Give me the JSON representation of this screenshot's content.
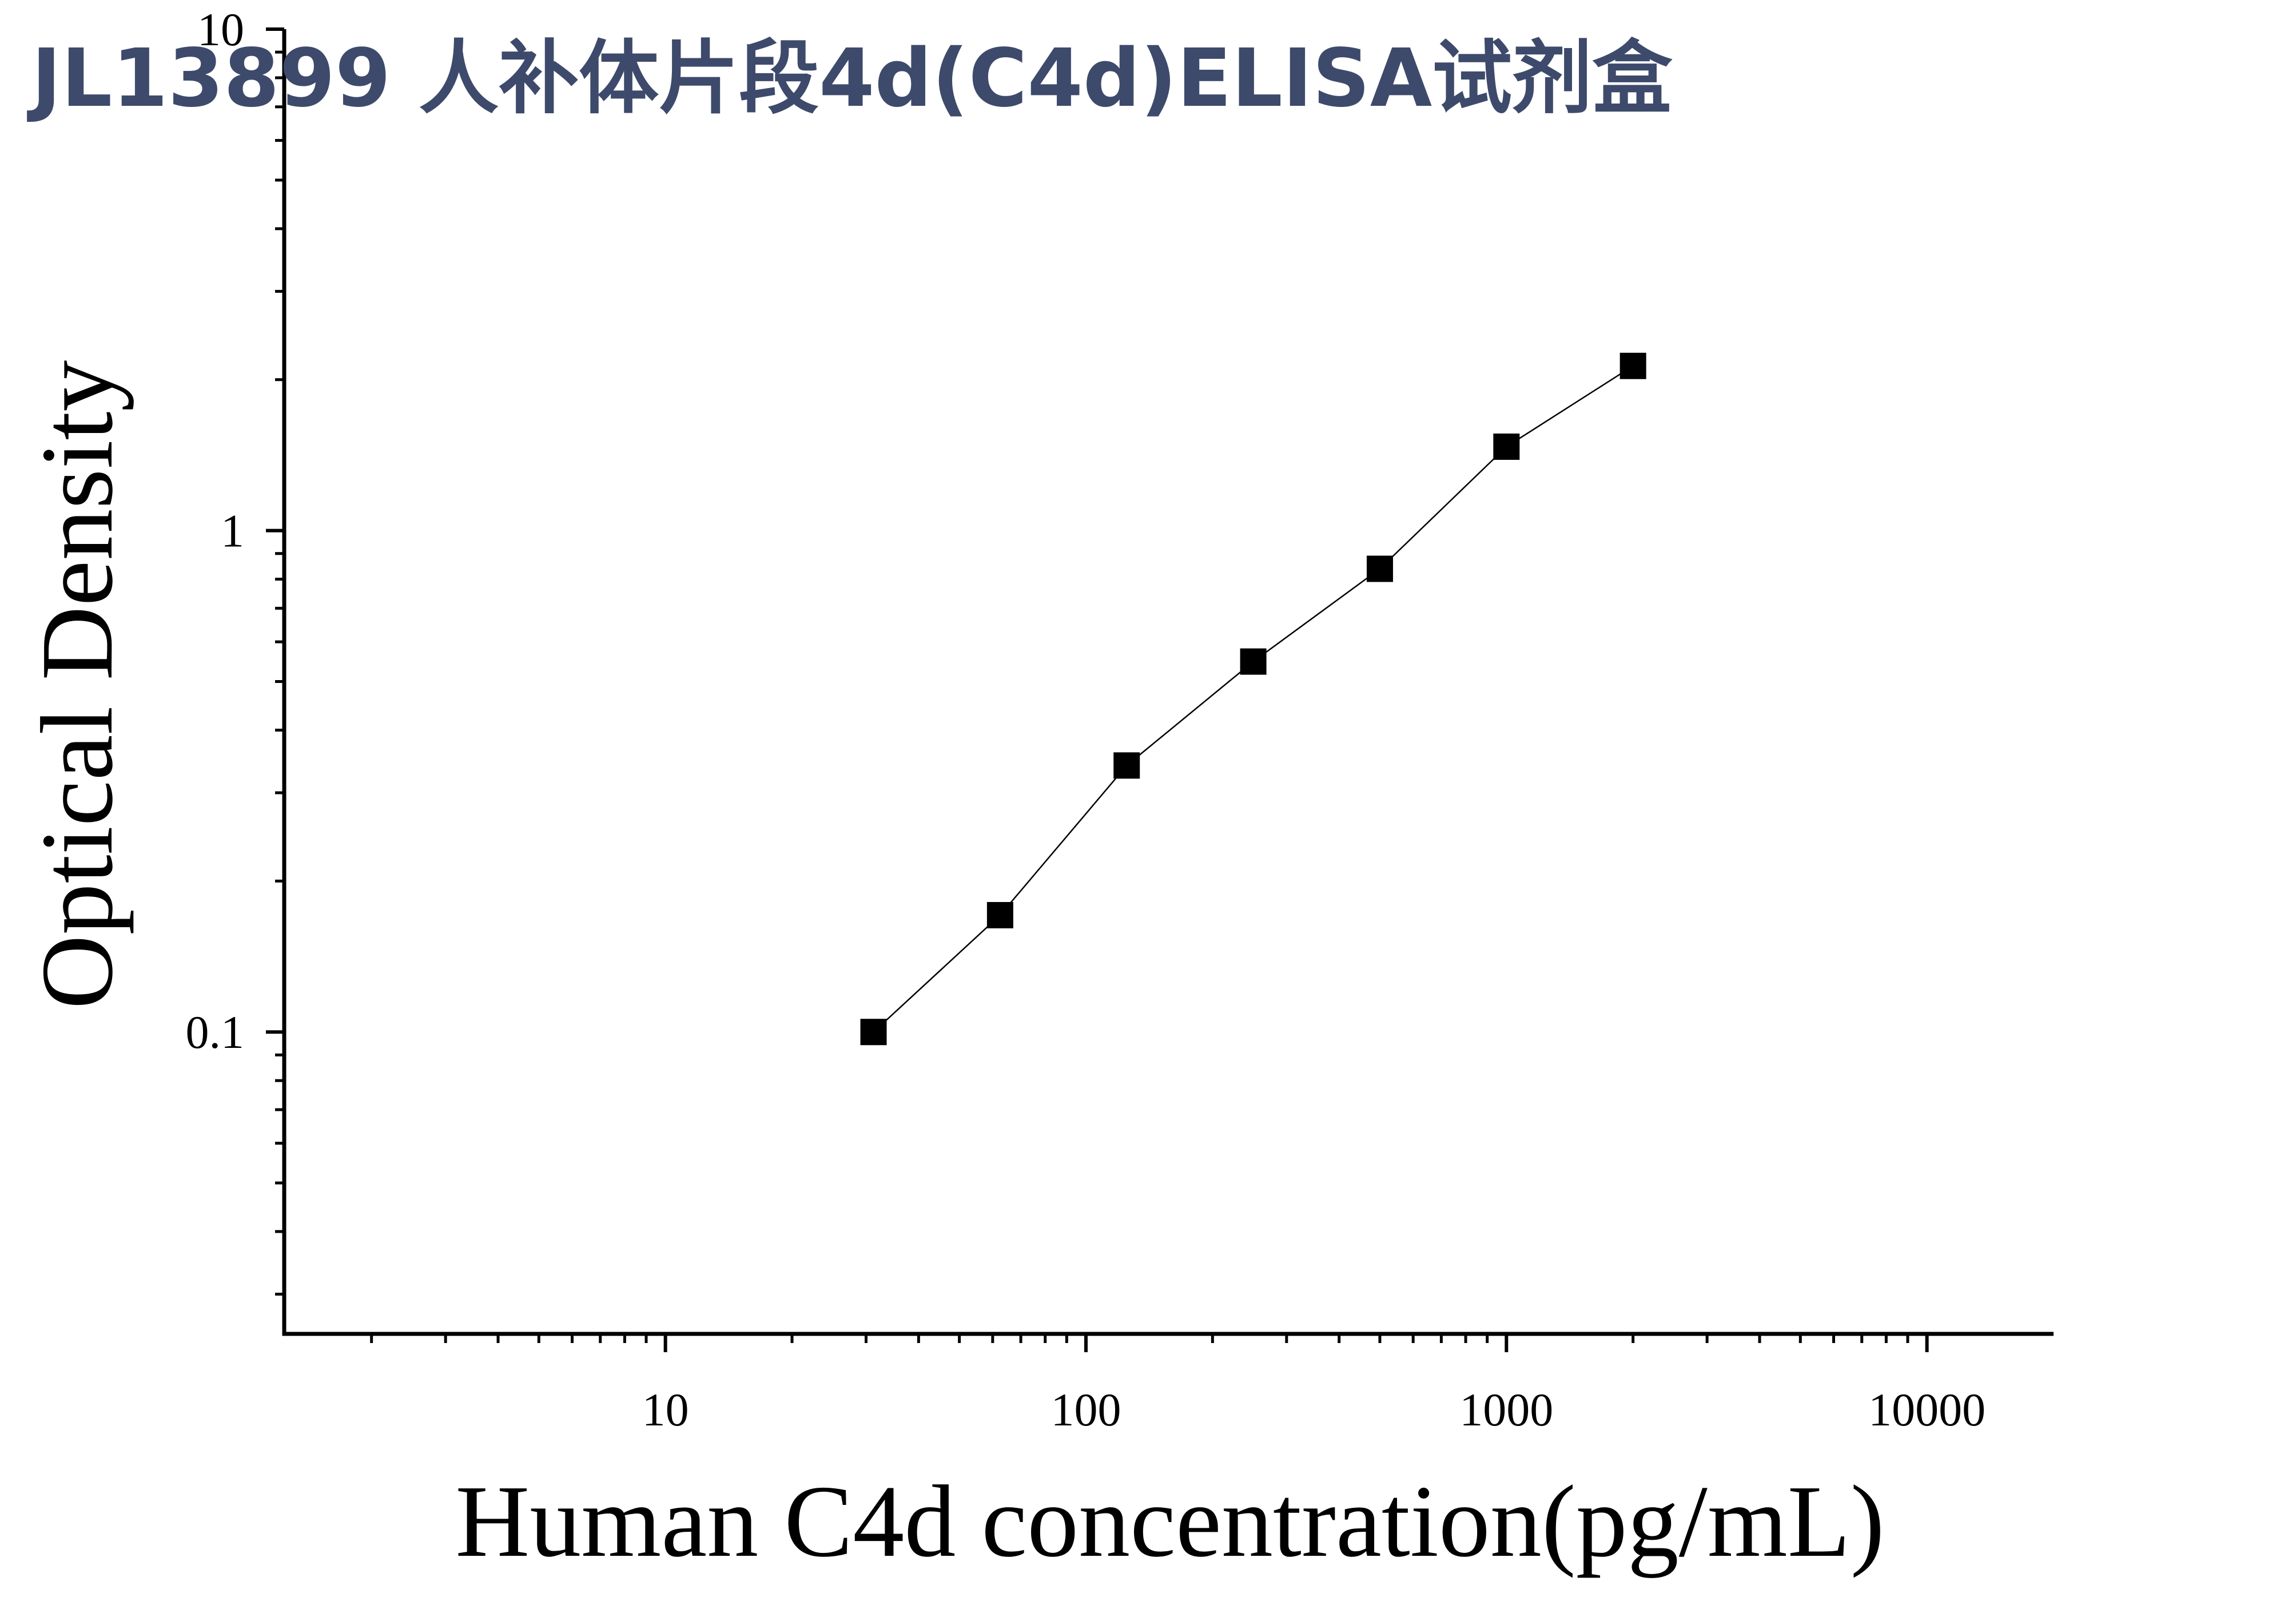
{
  "chart_data": {
    "type": "scatter",
    "title": "JL13899 人补体片段4d(C4d)ELISA试剂盒",
    "x_label": "Human C4d concentration(pg/mL)",
    "y_label": "Optical Density",
    "x": [
      31.25,
      62.5,
      125,
      250,
      500,
      1000,
      2000
    ],
    "series": [
      {
        "color": "#000000",
        "values": [
          0.1,
          0.171,
          0.34,
          0.548,
          0.839,
          1.47,
          2.13
        ]
      }
    ],
    "x_log": true,
    "y_log": true,
    "xlim": [
      1.24,
      20000
    ],
    "ylim": [
      0.025,
      10
    ],
    "xticks": [
      10,
      100,
      1000,
      10000
    ],
    "yticks": [
      0.1,
      1,
      10
    ],
    "grid": false
  }
}
